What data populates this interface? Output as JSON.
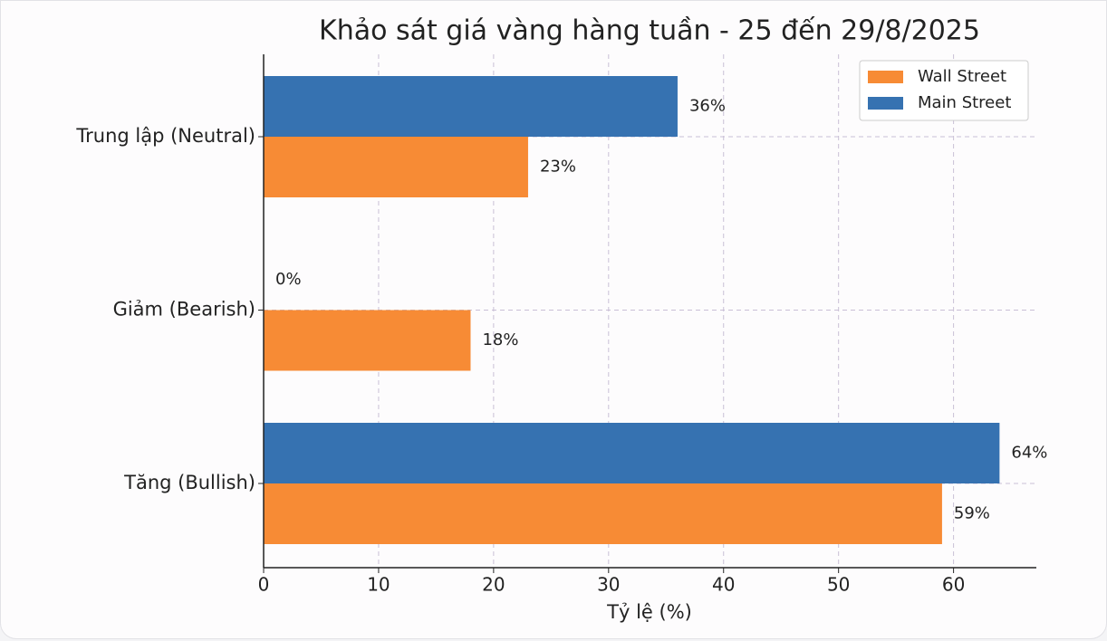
{
  "chart_data": {
    "type": "barh",
    "title": "Khảo sát giá vàng hàng tuần - 25 đến 29/8/2025",
    "xlabel": "Tỷ lệ (%)",
    "categories": [
      "Tăng (Bullish)",
      "Giảm (Bearish)",
      "Trung lập (Neutral)"
    ],
    "series": [
      {
        "name": "Wall Street",
        "color": "#f78b35",
        "values": [
          59,
          18,
          23
        ],
        "value_labels": [
          "59%",
          "18%",
          "23%"
        ]
      },
      {
        "name": "Main Street",
        "color": "#3672b1",
        "values": [
          64,
          0,
          36
        ],
        "value_labels": [
          "64%",
          "0%",
          "36%"
        ]
      }
    ],
    "xlim": [
      0,
      67.2
    ],
    "xticks": [
      0,
      10,
      20,
      30,
      40,
      50,
      60
    ],
    "grid": true,
    "legend": "upper right"
  }
}
